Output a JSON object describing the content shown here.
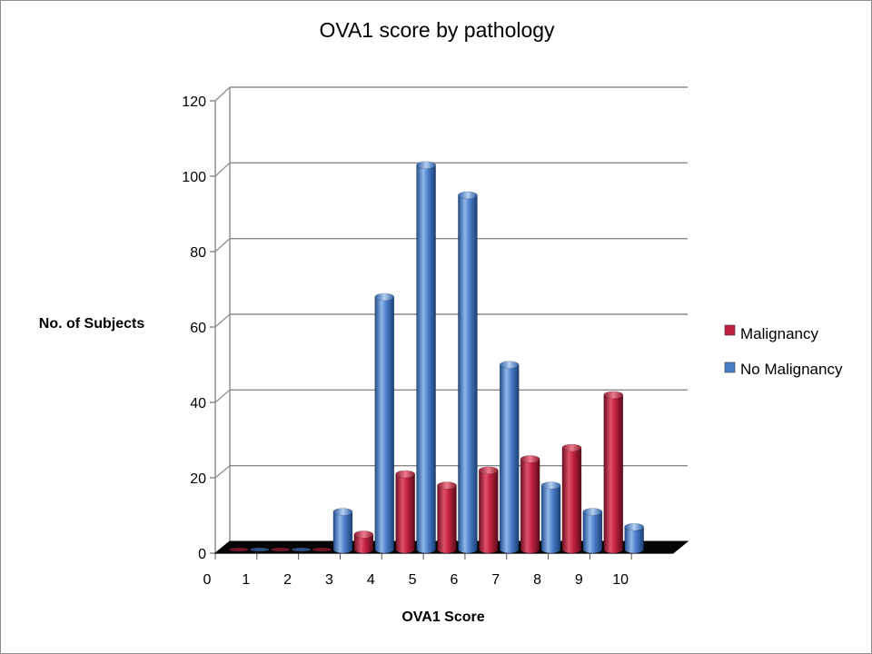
{
  "chart_data": {
    "type": "bar",
    "title": "OVA1 score by pathology",
    "xlabel": "OVA1 Score",
    "ylabel": "No. of Subjects",
    "x_ticks": [
      "0",
      "1",
      "2",
      "3",
      "4",
      "5",
      "6",
      "7",
      "8",
      "9",
      "10"
    ],
    "y_ticks": [
      "0",
      "20",
      "40",
      "60",
      "80",
      "100",
      "120"
    ],
    "ylim": [
      0,
      120
    ],
    "xlim": [
      0,
      11
    ],
    "grid": true,
    "legend_position": "right",
    "series": [
      {
        "name": "Malignancy",
        "color": "#c0213f",
        "x": [
          0.5,
          1.5,
          2.5,
          3.5,
          4.5,
          5.5,
          6.5,
          7.5,
          8.5,
          9.5
        ],
        "values": [
          0,
          0,
          0,
          4,
          20,
          17,
          21,
          24,
          27,
          41
        ]
      },
      {
        "name": "No Malignancy",
        "color": "#4a7ec9",
        "x": [
          1,
          2,
          3,
          4,
          5,
          6,
          7,
          8,
          9,
          10
        ],
        "values": [
          0,
          0,
          10,
          67,
          102,
          94,
          49,
          17,
          10,
          6
        ]
      }
    ]
  }
}
